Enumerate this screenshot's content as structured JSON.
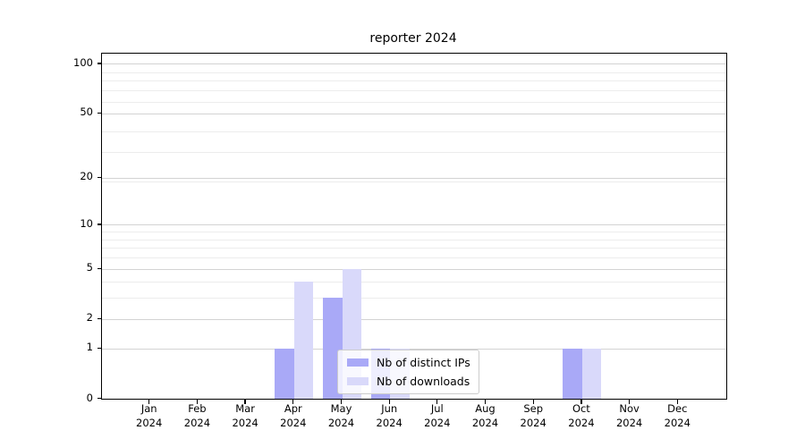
{
  "chart_data": {
    "type": "bar",
    "title": "reporter 2024",
    "categories": [
      "Jan",
      "Feb",
      "Mar",
      "Apr",
      "May",
      "Jun",
      "Jul",
      "Aug",
      "Sep",
      "Oct",
      "Nov",
      "Dec"
    ],
    "year_label": "2024",
    "series": [
      {
        "name": "Nb of distinct IPs",
        "color": "#a9a9f7",
        "values": [
          0,
          0,
          0,
          1,
          3,
          1,
          0,
          0,
          0,
          1,
          0,
          0
        ]
      },
      {
        "name": "Nb of downloads",
        "color": "#d9d9fa",
        "values": [
          0,
          0,
          0,
          4,
          5,
          1,
          0,
          0,
          0,
          1,
          0,
          0
        ]
      }
    ],
    "xlabel": "",
    "ylabel": "",
    "y_scale": "log10(1+y)",
    "y_ticks": [
      0,
      1,
      2,
      5,
      10,
      20,
      50,
      100
    ],
    "y_minor_ticks": [
      3,
      4,
      6,
      7,
      8,
      9,
      19,
      29,
      39,
      59,
      69,
      79,
      89
    ],
    "ylim": [
      0,
      115
    ],
    "grid": true,
    "legend_position": "inside-lower-center",
    "colors": {
      "grid_major": "#d3d3d3",
      "grid_minor": "#ececec",
      "axis": "#000000",
      "background": "#ffffff"
    }
  }
}
